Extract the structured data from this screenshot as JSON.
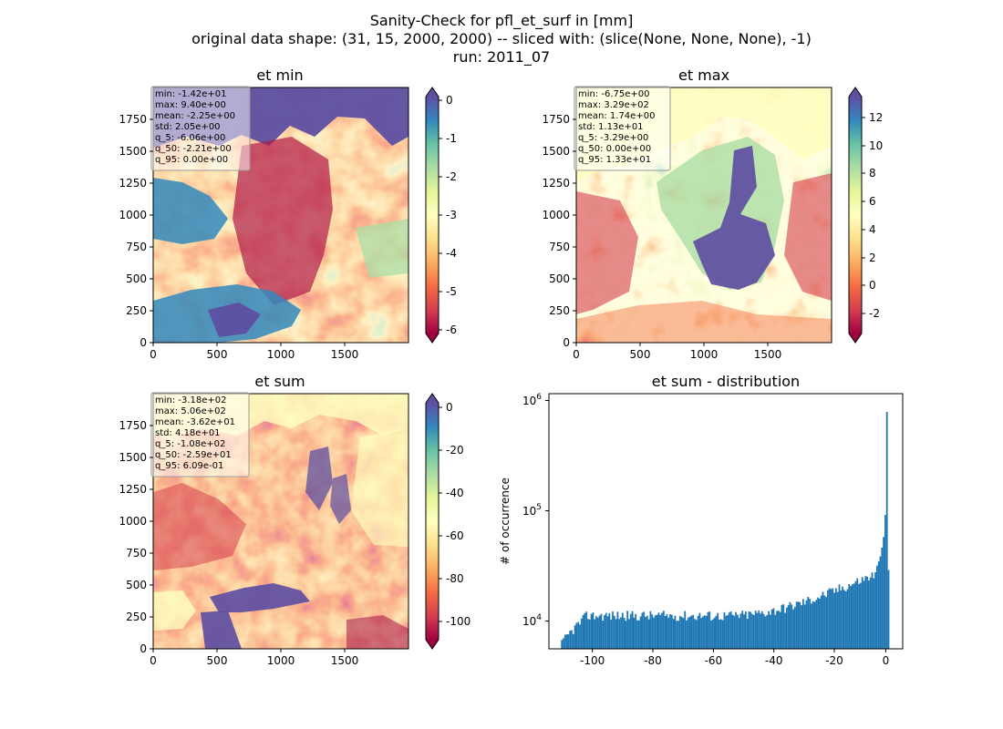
{
  "figure": {
    "suptitle_lines": [
      "Sanity-Check for pfl_et_surf in [mm]",
      "original data shape: (31, 15, 2000, 2000) -- sliced with: (slice(None, None, None), -1)",
      "run: 2011_07"
    ]
  },
  "chart_data": [
    {
      "type": "heatmap",
      "title": "et min",
      "colormap": "Spectral",
      "xlim": [
        0,
        2000
      ],
      "ylim": [
        0,
        2000
      ],
      "xticks": [
        0,
        500,
        1000,
        1500
      ],
      "yticks": [
        0,
        250,
        500,
        750,
        1000,
        1250,
        1500,
        1750
      ],
      "colorbar": {
        "range": [
          -6.06,
          0.0
        ],
        "ticks": [
          0,
          -1,
          -2,
          -3,
          -4,
          -5,
          -6
        ],
        "extend": "both"
      },
      "stats": [
        "min: -1.42e+01",
        "max: 9.40e+00",
        "mean: -2.25e+00",
        "std: 2.05e+00",
        "q_5: -6.06e+00",
        "q_50: -2.21e+00",
        "q_95: 0.00e+00"
      ]
    },
    {
      "type": "heatmap",
      "title": "et max",
      "colormap": "Spectral",
      "xlim": [
        0,
        2000
      ],
      "ylim": [
        0,
        2000
      ],
      "xticks": [
        0,
        500,
        1000,
        1500
      ],
      "yticks": [
        0,
        250,
        500,
        750,
        1000,
        1250,
        1500,
        1750
      ],
      "colorbar": {
        "range": [
          -3.29,
          13.3
        ],
        "ticks": [
          12,
          10,
          8,
          6,
          4,
          2,
          0,
          -2
        ],
        "extend": "both"
      },
      "stats": [
        "min: -6.75e+00",
        "max: 3.29e+02",
        "mean: 1.74e+00",
        "std: 1.13e+01",
        "q_5: -3.29e+00",
        "q_50: 0.00e+00",
        "q_95: 1.33e+01"
      ]
    },
    {
      "type": "heatmap",
      "title": "et sum",
      "colormap": "Spectral",
      "xlim": [
        0,
        2000
      ],
      "ylim": [
        0,
        2000
      ],
      "xticks": [
        0,
        500,
        1000,
        1500
      ],
      "yticks": [
        0,
        250,
        500,
        750,
        1000,
        1250,
        1500,
        1750
      ],
      "colorbar": {
        "range": [
          -108,
          0.609
        ],
        "ticks": [
          0,
          -20,
          -40,
          -60,
          -80,
          -100
        ],
        "extend": "both"
      },
      "stats": [
        "min: -3.18e+02",
        "max: 5.06e+02",
        "mean: -3.62e+01",
        "std: 4.18e+01",
        "q_5: -1.08e+02",
        "q_50: -2.59e+01",
        "q_95: 6.09e-01"
      ]
    },
    {
      "type": "bar",
      "title": "et sum - distribution",
      "ylabel": "# of occurrence",
      "yscale": "log",
      "xlim": [
        -112,
        5
      ],
      "ylim": [
        5800,
        1200000
      ],
      "xticks": [
        -100,
        -80,
        -60,
        -40,
        -20,
        0
      ],
      "yticks": [
        10000,
        100000,
        1000000
      ],
      "ytick_labels": [
        [
          "10",
          "4"
        ],
        [
          "10",
          "5"
        ],
        [
          "10",
          "6"
        ]
      ],
      "bar_color": "#1f77b4",
      "bins": [
        -108,
        0.6
      ],
      "bin_count": 200,
      "spike_bins": [
        [
          -0.25,
          820000
        ],
        [
          -0.8,
          95000
        ],
        [
          -1.35,
          60000
        ],
        [
          -1.9,
          48000
        ],
        [
          -2.45,
          40000
        ],
        [
          -3.0,
          36000
        ],
        [
          -3.55,
          33000
        ]
      ]
    }
  ]
}
